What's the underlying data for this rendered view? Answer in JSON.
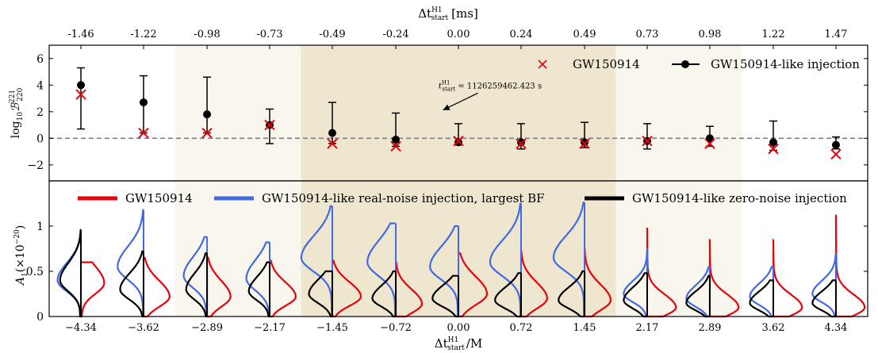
{
  "chart_data": [
    {
      "type": "scatter",
      "top_axis": {
        "label": "Δt",
        "label_superscript": "H1",
        "label_subscript": "start",
        "label_unit": "[ms]",
        "ticks": [
          "-1.46",
          "-1.22",
          "-0.98",
          "-0.73",
          "-0.49",
          "-0.24",
          "0.00",
          "0.24",
          "0.49",
          "0.73",
          "0.98",
          "1.22",
          "1.47"
        ]
      },
      "ylabel": "log",
      "ylabel_sub": "10",
      "ylabel_B": "ℬ",
      "ylabel_sup": "221",
      "ylabel_subB": "220",
      "ylim": [
        -3.2,
        7
      ],
      "yticks": [
        -2,
        0,
        2,
        4,
        6
      ],
      "ytick_labels": [
        "−2",
        "0",
        "2",
        "4",
        "6"
      ],
      "reference_line_y": 0,
      "x": [
        -4.34,
        -3.62,
        -2.89,
        -2.17,
        -1.45,
        -0.72,
        0.0,
        0.72,
        1.45,
        2.17,
        2.89,
        3.62,
        4.34
      ],
      "series": [
        {
          "name": "GW150914",
          "marker": "x",
          "color": "#e8000b",
          "values": [
            3.3,
            0.4,
            0.4,
            1.0,
            -0.4,
            -0.6,
            -0.2,
            -0.4,
            -0.4,
            -0.2,
            -0.4,
            -0.8,
            -1.2
          ]
        },
        {
          "name": "GW150914-like injection",
          "marker": "o",
          "color": "#000000",
          "values": [
            4.0,
            2.7,
            1.8,
            1.0,
            0.4,
            -0.1,
            -0.3,
            -0.3,
            -0.3,
            -0.2,
            0.0,
            -0.3,
            -0.5
          ],
          "err_low": [
            3.3,
            2.3,
            1.4,
            1.4,
            0.8,
            0.5,
            0.2,
            0.5,
            0.4,
            0.6,
            0.6,
            0.6,
            0.3
          ],
          "err_high": [
            1.3,
            2.0,
            2.8,
            1.2,
            2.3,
            2.0,
            1.4,
            1.4,
            1.5,
            1.3,
            0.9,
            1.6,
            0.6
          ]
        }
      ],
      "annotation": {
        "text_base": "t",
        "text_sup": "H1",
        "text_sub": "start",
        "text_value": " = 1126259462.423 s",
        "x": -0.12,
        "y": 4.0,
        "arrow_to_x": -0.25,
        "arrow_to_y": 3.2
      }
    },
    {
      "type": "violin",
      "xlabel": "Δt",
      "xlabel_superscript": "H1",
      "xlabel_subscript": "start",
      "xlabel_tail": "/M",
      "ylabel": "A",
      "ylabel_sub": "1",
      "ylabel_unit": "(×10",
      "ylabel_exp": "−20",
      "ylabel_close": ")",
      "ylim": [
        0,
        1.5
      ],
      "yticks": [
        0,
        0.5,
        1
      ],
      "ytick_labels": [
        "0",
        "0.5",
        "1"
      ],
      "x": [
        -4.34,
        -3.62,
        -2.89,
        -2.17,
        -1.45,
        -0.72,
        0.0,
        0.72,
        1.45,
        2.17,
        2.89,
        3.62,
        4.34
      ],
      "xtick_labels": [
        "−4.34",
        "−3.62",
        "−2.89",
        "−2.17",
        "−1.45",
        "−0.72",
        "0.00",
        "0.72",
        "1.45",
        "2.17",
        "2.89",
        "3.62",
        "4.34"
      ],
      "series": [
        {
          "name": "GW150914",
          "color": "#e8000b",
          "side": "right",
          "peak": [
            0.37,
            0.22,
            0.22,
            0.22,
            0.22,
            0.14,
            0.25,
            0.2,
            0.18,
            0.1,
            0.1,
            0.1,
            0.1
          ],
          "width": [
            0.12,
            0.11,
            0.11,
            0.1,
            0.1,
            0.1,
            0.12,
            0.11,
            0.11,
            0.09,
            0.09,
            0.09,
            0.09
          ],
          "amp": [
            0.09,
            0.1,
            0.09,
            0.1,
            0.11,
            0.1,
            0.11,
            0.1,
            0.1,
            0.11,
            0.11,
            0.11,
            0.11
          ],
          "top": [
            0.6,
            0.65,
            0.65,
            0.62,
            0.62,
            0.6,
            0.7,
            0.72,
            0.75,
            0.98,
            0.85,
            0.85,
            1.12
          ]
        },
        {
          "name": "GW150914-like real-noise injection, largest BF",
          "color": "#4169e1",
          "side": "left",
          "peak": [
            0.4,
            0.55,
            0.45,
            0.42,
            0.65,
            0.6,
            0.55,
            0.6,
            0.65,
            0.25,
            0.2,
            0.22,
            0.25
          ],
          "width": [
            0.12,
            0.14,
            0.13,
            0.13,
            0.15,
            0.15,
            0.14,
            0.15,
            0.15,
            0.09,
            0.09,
            0.09,
            0.09
          ],
          "amp": [
            0.09,
            0.1,
            0.09,
            0.09,
            0.12,
            0.11,
            0.11,
            0.12,
            0.12,
            0.09,
            0.09,
            0.09,
            0.09
          ],
          "top": [
            0.82,
            1.18,
            0.88,
            0.82,
            1.22,
            1.03,
            1.0,
            1.25,
            1.26,
            0.75,
            0.55,
            0.55,
            0.7
          ]
        },
        {
          "name": "GW150914-like zero-noise injection",
          "color": "#000000",
          "side": "left",
          "peak": [
            0.4,
            0.3,
            0.3,
            0.28,
            0.25,
            0.2,
            0.2,
            0.18,
            0.18,
            0.18,
            0.15,
            0.15,
            0.15
          ],
          "width": [
            0.12,
            0.11,
            0.11,
            0.1,
            0.1,
            0.09,
            0.09,
            0.09,
            0.09,
            0.09,
            0.08,
            0.08,
            0.08
          ],
          "amp": [
            0.08,
            0.09,
            0.08,
            0.08,
            0.09,
            0.09,
            0.1,
            0.1,
            0.1,
            0.09,
            0.09,
            0.09,
            0.09
          ],
          "top": [
            0.96,
            0.72,
            0.7,
            0.6,
            0.5,
            0.5,
            0.45,
            0.48,
            0.5,
            0.48,
            0.45,
            0.4,
            0.4
          ]
        }
      ]
    }
  ],
  "shading": [
    {
      "from": -3.26,
      "to": 3.26,
      "color": "#f9f6ed"
    },
    {
      "from": -1.81,
      "to": 1.81,
      "color": "#efe6d0"
    }
  ]
}
